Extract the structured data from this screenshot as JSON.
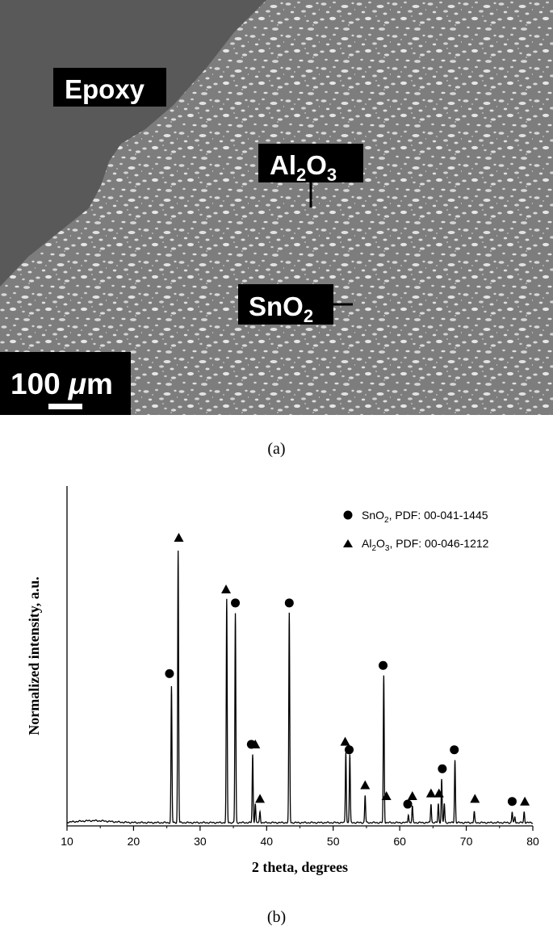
{
  "micrograph": {
    "labels": {
      "epoxy": "Epoxy",
      "al2o3_main": "Al",
      "al2o3_sub1": "2",
      "al2o3_mid": "O",
      "al2o3_sub2": "3",
      "sno2_main": "SnO",
      "sno2_sub": "2",
      "scale_value": "100",
      "scale_unit_mu": "μ",
      "scale_unit_m": "m"
    },
    "colors": {
      "epoxy": "#595959",
      "matrix": "#7a7a7a",
      "sno2_grains": "#d9d9d9",
      "label_bg": "#000000"
    }
  },
  "captions": {
    "a": "(a)",
    "b": "(b)"
  },
  "chart_data": {
    "type": "line",
    "xlabel": "2 theta, degrees",
    "ylabel": "Normalized intensity, a.u.",
    "xlim": [
      10,
      80
    ],
    "xticks": [
      10,
      20,
      30,
      40,
      50,
      60,
      70,
      80
    ],
    "ylim": [
      0,
      1.25
    ],
    "background": 0.012,
    "legend": {
      "placement": "top-right",
      "entries": [
        {
          "marker": "circle",
          "phase": "SnO",
          "sub": "2",
          "pdf": ", PDF: 00-041-1445"
        },
        {
          "marker": "triangle",
          "phase": "Al",
          "sub": "2",
          "mid": "O",
          "sub2": "3",
          "pdf": ", PDF: 00-046-1212"
        }
      ]
    },
    "peaks": [
      {
        "x": 25.7,
        "y": 0.5
      },
      {
        "x": 26.7,
        "y": 1.0
      },
      {
        "x": 34.0,
        "y": 0.82
      },
      {
        "x": 35.3,
        "y": 0.77
      },
      {
        "x": 37.9,
        "y": 0.25
      },
      {
        "x": 38.3,
        "y": 0.07
      },
      {
        "x": 39.0,
        "y": 0.04
      },
      {
        "x": 43.4,
        "y": 0.77
      },
      {
        "x": 51.9,
        "y": 0.26
      },
      {
        "x": 52.5,
        "y": 0.25
      },
      {
        "x": 54.8,
        "y": 0.1
      },
      {
        "x": 57.6,
        "y": 0.54
      },
      {
        "x": 61.3,
        "y": 0.03
      },
      {
        "x": 61.9,
        "y": 0.06
      },
      {
        "x": 64.7,
        "y": 0.07
      },
      {
        "x": 65.8,
        "y": 0.07
      },
      {
        "x": 66.3,
        "y": 0.16
      },
      {
        "x": 66.7,
        "y": 0.07
      },
      {
        "x": 68.3,
        "y": 0.23
      },
      {
        "x": 71.2,
        "y": 0.04
      },
      {
        "x": 76.9,
        "y": 0.04
      },
      {
        "x": 77.3,
        "y": 0.02
      },
      {
        "x": 78.7,
        "y": 0.04
      }
    ],
    "markers": [
      {
        "type": "circle",
        "x": 25.4,
        "y": 0.56
      },
      {
        "type": "triangle",
        "x": 26.8,
        "y": 1.06
      },
      {
        "type": "triangle",
        "x": 33.9,
        "y": 0.87
      },
      {
        "type": "circle",
        "x": 35.3,
        "y": 0.82
      },
      {
        "type": "circle",
        "x": 37.7,
        "y": 0.3
      },
      {
        "type": "triangle",
        "x": 38.3,
        "y": 0.3
      },
      {
        "type": "triangle",
        "x": 39.0,
        "y": 0.1
      },
      {
        "type": "circle",
        "x": 43.4,
        "y": 0.82
      },
      {
        "type": "triangle",
        "x": 51.8,
        "y": 0.31
      },
      {
        "type": "circle",
        "x": 52.4,
        "y": 0.28
      },
      {
        "type": "triangle",
        "x": 54.8,
        "y": 0.15
      },
      {
        "type": "circle",
        "x": 57.5,
        "y": 0.59
      },
      {
        "type": "triangle",
        "x": 58.0,
        "y": 0.11
      },
      {
        "type": "circle",
        "x": 61.2,
        "y": 0.08
      },
      {
        "type": "triangle",
        "x": 61.9,
        "y": 0.11
      },
      {
        "type": "triangle",
        "x": 64.7,
        "y": 0.12
      },
      {
        "type": "triangle",
        "x": 65.9,
        "y": 0.12
      },
      {
        "type": "circle",
        "x": 66.4,
        "y": 0.21
      },
      {
        "type": "circle",
        "x": 68.2,
        "y": 0.28
      },
      {
        "type": "triangle",
        "x": 71.3,
        "y": 0.1
      },
      {
        "type": "circle",
        "x": 76.9,
        "y": 0.09
      },
      {
        "type": "triangle",
        "x": 78.8,
        "y": 0.09
      }
    ]
  }
}
